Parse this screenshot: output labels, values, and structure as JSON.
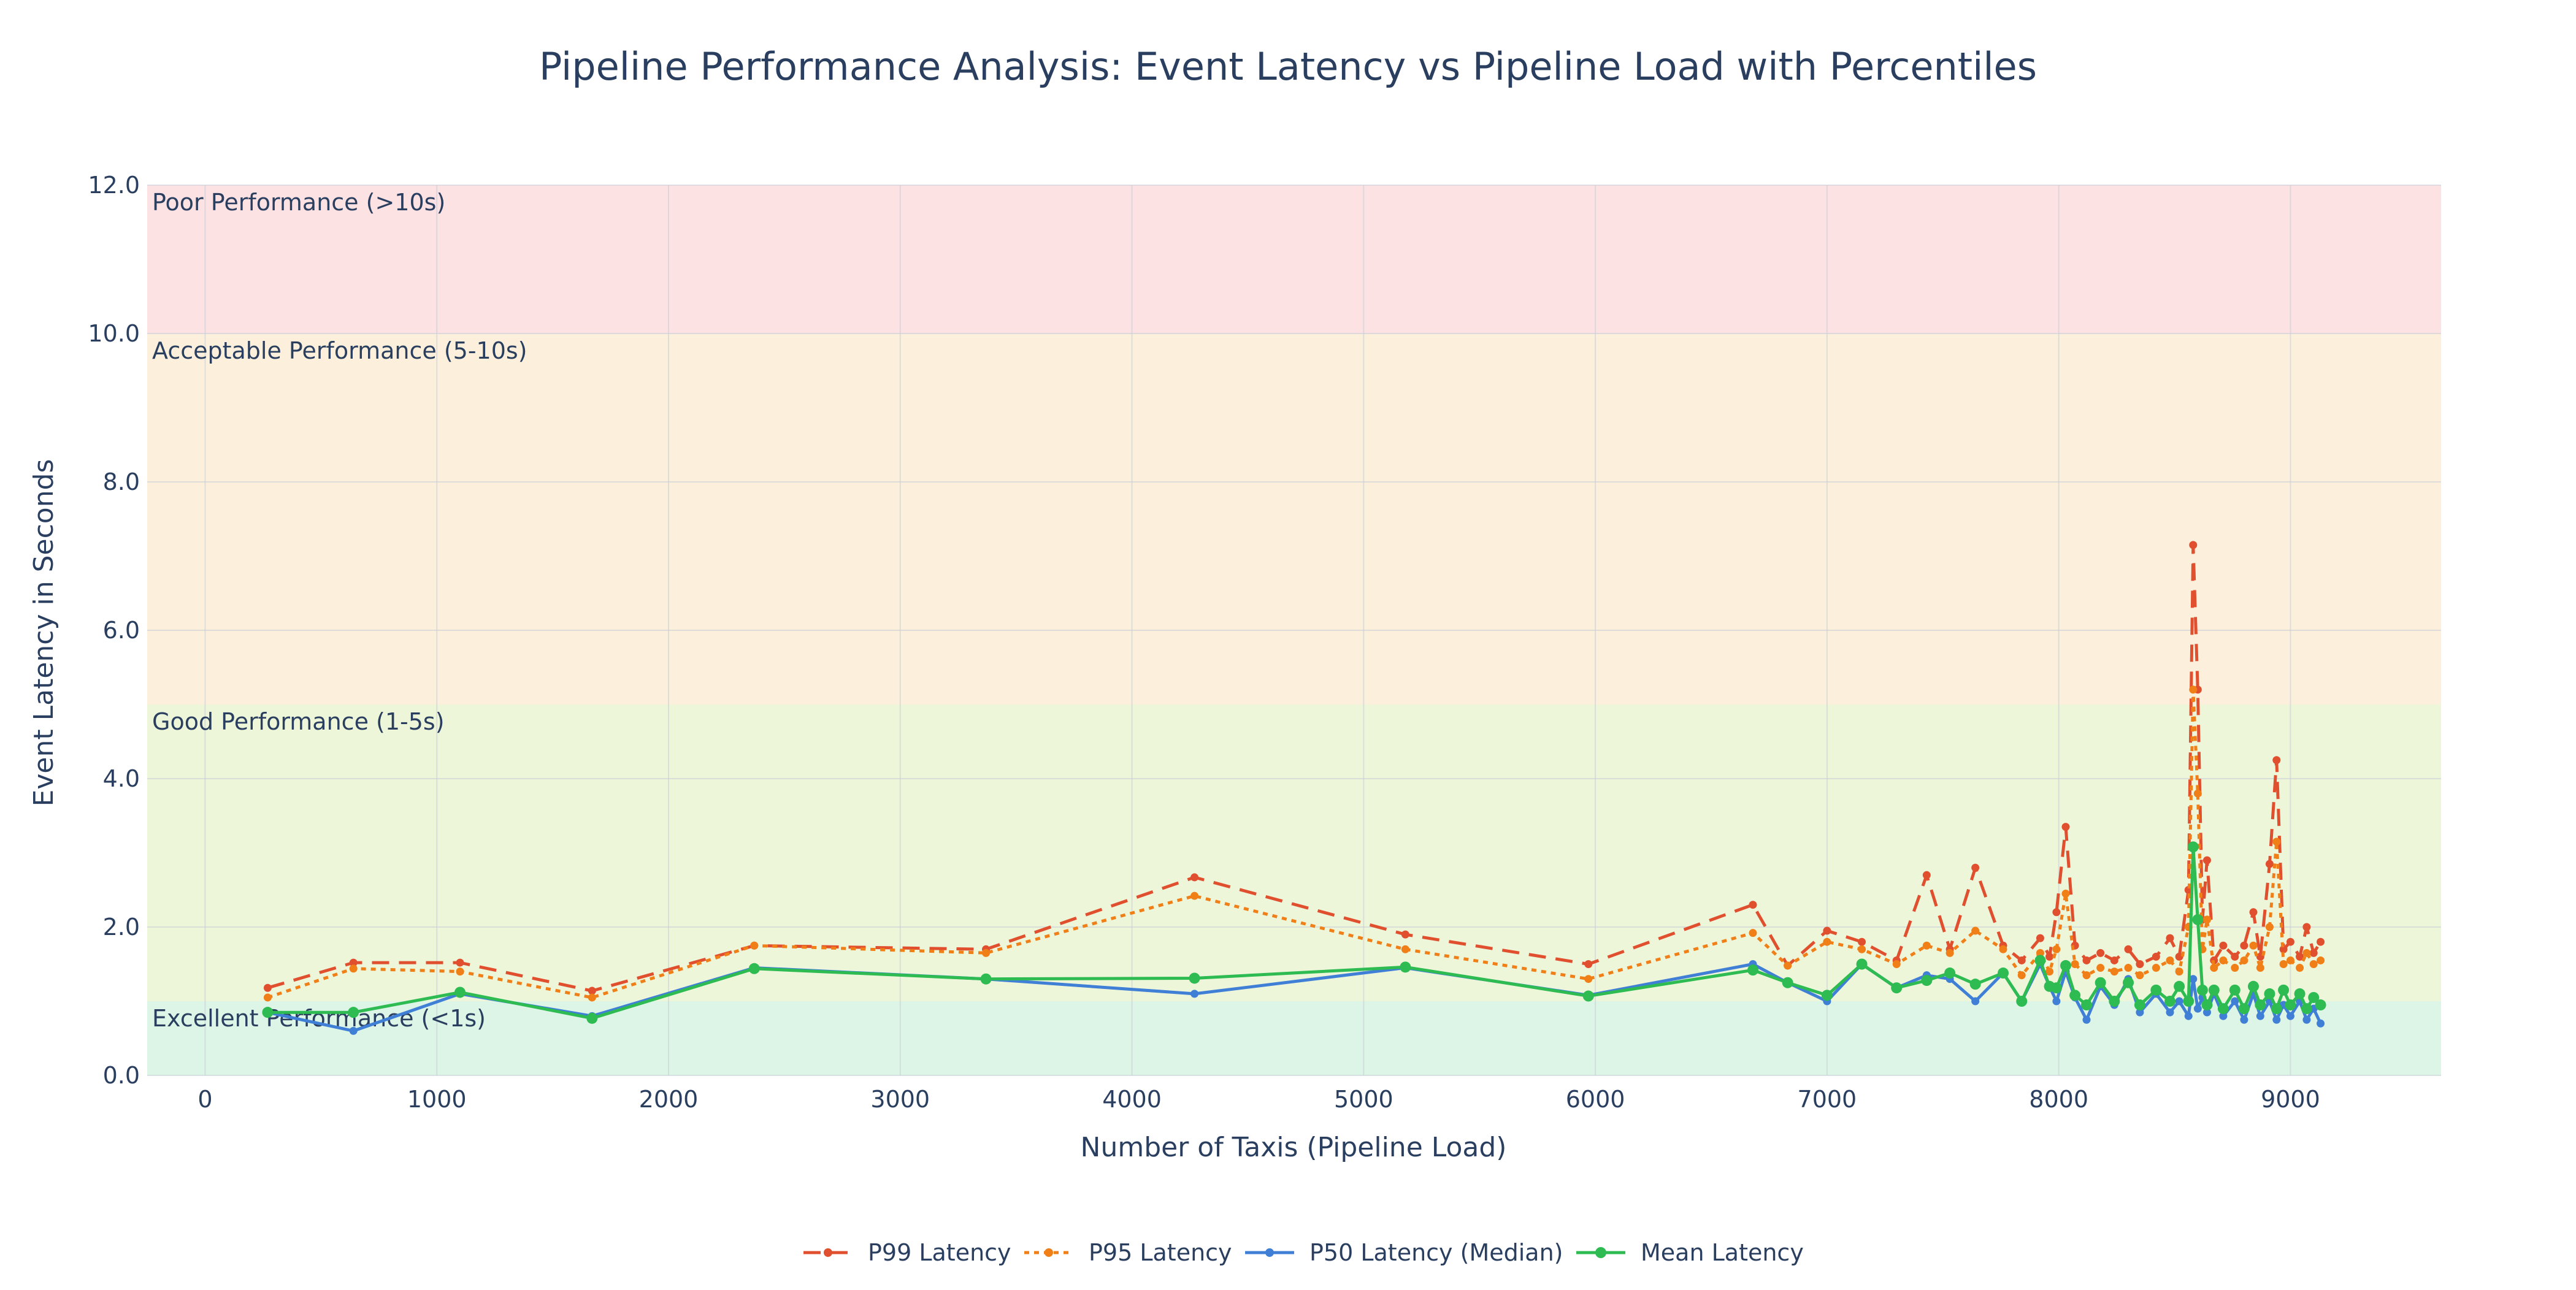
{
  "chart_data": {
    "type": "line",
    "title": "Pipeline Performance Analysis: Event Latency vs Pipeline Load with Percentiles",
    "xlabel": "Number of Taxis (Pipeline Load)",
    "ylabel": "Event Latency in Seconds",
    "xlim": [
      -250,
      9650
    ],
    "ylim": [
      0,
      12
    ],
    "x_ticks": [
      0,
      1000,
      2000,
      3000,
      4000,
      5000,
      6000,
      7000,
      8000,
      9000
    ],
    "y_ticks": [
      "0.0",
      "2.0",
      "4.0",
      "6.0",
      "8.0",
      "10.0",
      "12.0"
    ],
    "grid": true,
    "legend_position": "bottom-center",
    "bands": [
      {
        "label": "Excellent Performance (<1s)",
        "y0": 0,
        "y1": 1,
        "color": "#ddf5e6"
      },
      {
        "label": "Good Performance (1-5s)",
        "y0": 1,
        "y1": 5,
        "color": "#eef6da"
      },
      {
        "label": "Acceptable Performance (5-10s)",
        "y0": 5,
        "y1": 10,
        "color": "#fcf0dc"
      },
      {
        "label": "Poor Performance (>10s)",
        "y0": 10,
        "y1": 12,
        "color": "#fde2e4"
      }
    ],
    "series": [
      {
        "name": "P99 Latency",
        "color": "#e0502f",
        "dash": "dash",
        "points": [
          [
            270,
            1.18
          ],
          [
            640,
            1.52
          ],
          [
            1100,
            1.52
          ],
          [
            1670,
            1.14
          ],
          [
            2370,
            1.75
          ],
          [
            3370,
            1.7
          ],
          [
            4270,
            2.67
          ],
          [
            5180,
            1.9
          ],
          [
            5970,
            1.5
          ],
          [
            6680,
            2.3
          ],
          [
            6830,
            1.48
          ],
          [
            7000,
            1.95
          ],
          [
            7150,
            1.8
          ],
          [
            7300,
            1.55
          ],
          [
            7430,
            2.7
          ],
          [
            7530,
            1.7
          ],
          [
            7640,
            2.8
          ],
          [
            7760,
            1.75
          ],
          [
            7840,
            1.55
          ],
          [
            7920,
            1.85
          ],
          [
            7960,
            1.6
          ],
          [
            7990,
            2.2
          ],
          [
            8030,
            3.35
          ],
          [
            8070,
            1.75
          ],
          [
            8120,
            1.55
          ],
          [
            8180,
            1.65
          ],
          [
            8240,
            1.55
          ],
          [
            8300,
            1.7
          ],
          [
            8350,
            1.5
          ],
          [
            8420,
            1.6
          ],
          [
            8480,
            1.85
          ],
          [
            8520,
            1.6
          ],
          [
            8560,
            2.5
          ],
          [
            8580,
            7.15
          ],
          [
            8600,
            5.2
          ],
          [
            8620,
            2.1
          ],
          [
            8640,
            2.9
          ],
          [
            8670,
            1.55
          ],
          [
            8710,
            1.75
          ],
          [
            8760,
            1.6
          ],
          [
            8800,
            1.75
          ],
          [
            8840,
            2.2
          ],
          [
            8870,
            1.6
          ],
          [
            8910,
            2.85
          ],
          [
            8940,
            4.25
          ],
          [
            8970,
            1.7
          ],
          [
            9000,
            1.8
          ],
          [
            9040,
            1.6
          ],
          [
            9070,
            2.0
          ],
          [
            9100,
            1.65
          ],
          [
            9130,
            1.8
          ]
        ]
      },
      {
        "name": "P95 Latency",
        "color": "#f07f17",
        "dash": "dot",
        "points": [
          [
            270,
            1.05
          ],
          [
            640,
            1.44
          ],
          [
            1100,
            1.4
          ],
          [
            1670,
            1.05
          ],
          [
            2370,
            1.75
          ],
          [
            3370,
            1.65
          ],
          [
            4270,
            2.42
          ],
          [
            5180,
            1.7
          ],
          [
            5970,
            1.3
          ],
          [
            6680,
            1.92
          ],
          [
            6830,
            1.48
          ],
          [
            7000,
            1.8
          ],
          [
            7150,
            1.7
          ],
          [
            7300,
            1.5
          ],
          [
            7430,
            1.75
          ],
          [
            7530,
            1.65
          ],
          [
            7640,
            1.95
          ],
          [
            7760,
            1.7
          ],
          [
            7840,
            1.35
          ],
          [
            7920,
            1.65
          ],
          [
            7960,
            1.4
          ],
          [
            7990,
            1.7
          ],
          [
            8030,
            2.45
          ],
          [
            8070,
            1.5
          ],
          [
            8120,
            1.35
          ],
          [
            8180,
            1.45
          ],
          [
            8240,
            1.4
          ],
          [
            8300,
            1.45
          ],
          [
            8350,
            1.35
          ],
          [
            8420,
            1.45
          ],
          [
            8480,
            1.55
          ],
          [
            8520,
            1.4
          ],
          [
            8560,
            2.0
          ],
          [
            8580,
            5.2
          ],
          [
            8600,
            3.8
          ],
          [
            8620,
            1.7
          ],
          [
            8640,
            2.1
          ],
          [
            8670,
            1.45
          ],
          [
            8710,
            1.55
          ],
          [
            8760,
            1.45
          ],
          [
            8800,
            1.55
          ],
          [
            8840,
            1.75
          ],
          [
            8870,
            1.45
          ],
          [
            8910,
            2.0
          ],
          [
            8940,
            3.15
          ],
          [
            8970,
            1.5
          ],
          [
            9000,
            1.55
          ],
          [
            9040,
            1.45
          ],
          [
            9070,
            1.65
          ],
          [
            9100,
            1.5
          ],
          [
            9130,
            1.55
          ]
        ]
      },
      {
        "name": "P50 Latency (Median)",
        "color": "#3f7fd6",
        "dash": "solid",
        "points": [
          [
            270,
            0.85
          ],
          [
            640,
            0.6
          ],
          [
            1100,
            1.1
          ],
          [
            1670,
            0.8
          ],
          [
            2370,
            1.45
          ],
          [
            3370,
            1.3
          ],
          [
            4270,
            1.1
          ],
          [
            5180,
            1.45
          ],
          [
            5970,
            1.08
          ],
          [
            6680,
            1.5
          ],
          [
            6830,
            1.25
          ],
          [
            7000,
            1.0
          ],
          [
            7150,
            1.5
          ],
          [
            7300,
            1.18
          ],
          [
            7430,
            1.35
          ],
          [
            7530,
            1.3
          ],
          [
            7640,
            1.0
          ],
          [
            7760,
            1.38
          ],
          [
            7840,
            1.0
          ],
          [
            7920,
            1.5
          ],
          [
            7960,
            1.2
          ],
          [
            7990,
            1.0
          ],
          [
            8030,
            1.4
          ],
          [
            8070,
            1.05
          ],
          [
            8120,
            0.75
          ],
          [
            8180,
            1.2
          ],
          [
            8240,
            0.95
          ],
          [
            8300,
            1.3
          ],
          [
            8350,
            0.85
          ],
          [
            8420,
            1.1
          ],
          [
            8480,
            0.85
          ],
          [
            8520,
            1.0
          ],
          [
            8560,
            0.8
          ],
          [
            8580,
            1.3
          ],
          [
            8600,
            0.9
          ],
          [
            8620,
            1.05
          ],
          [
            8640,
            0.85
          ],
          [
            8670,
            1.1
          ],
          [
            8710,
            0.8
          ],
          [
            8760,
            1.0
          ],
          [
            8800,
            0.75
          ],
          [
            8840,
            1.1
          ],
          [
            8870,
            0.8
          ],
          [
            8910,
            1.0
          ],
          [
            8940,
            0.75
          ],
          [
            8970,
            0.95
          ],
          [
            9000,
            0.8
          ],
          [
            9040,
            1.0
          ],
          [
            9070,
            0.75
          ],
          [
            9100,
            0.9
          ],
          [
            9130,
            0.7
          ]
        ]
      },
      {
        "name": "Mean Latency",
        "color": "#2dbb52",
        "dash": "solid",
        "points": [
          [
            270,
            0.85
          ],
          [
            640,
            0.85
          ],
          [
            1100,
            1.12
          ],
          [
            1670,
            0.77
          ],
          [
            2370,
            1.44
          ],
          [
            3370,
            1.3
          ],
          [
            4270,
            1.31
          ],
          [
            5180,
            1.46
          ],
          [
            5970,
            1.07
          ],
          [
            6680,
            1.42
          ],
          [
            6830,
            1.25
          ],
          [
            7000,
            1.08
          ],
          [
            7150,
            1.5
          ],
          [
            7300,
            1.18
          ],
          [
            7430,
            1.28
          ],
          [
            7530,
            1.38
          ],
          [
            7640,
            1.23
          ],
          [
            7760,
            1.38
          ],
          [
            7840,
            1.0
          ],
          [
            7920,
            1.55
          ],
          [
            7960,
            1.2
          ],
          [
            7990,
            1.18
          ],
          [
            8030,
            1.48
          ],
          [
            8070,
            1.08
          ],
          [
            8120,
            0.95
          ],
          [
            8180,
            1.25
          ],
          [
            8240,
            1.0
          ],
          [
            8300,
            1.25
          ],
          [
            8350,
            0.95
          ],
          [
            8420,
            1.15
          ],
          [
            8480,
            1.0
          ],
          [
            8520,
            1.2
          ],
          [
            8560,
            1.0
          ],
          [
            8580,
            3.08
          ],
          [
            8600,
            2.1
          ],
          [
            8620,
            1.15
          ],
          [
            8640,
            0.95
          ],
          [
            8670,
            1.15
          ],
          [
            8710,
            0.9
          ],
          [
            8760,
            1.15
          ],
          [
            8800,
            0.9
          ],
          [
            8840,
            1.2
          ],
          [
            8870,
            0.95
          ],
          [
            8910,
            1.1
          ],
          [
            8940,
            0.9
          ],
          [
            8970,
            1.15
          ],
          [
            9000,
            0.95
          ],
          [
            9040,
            1.1
          ],
          [
            9070,
            0.9
          ],
          [
            9100,
            1.05
          ],
          [
            9130,
            0.95
          ]
        ]
      }
    ]
  }
}
